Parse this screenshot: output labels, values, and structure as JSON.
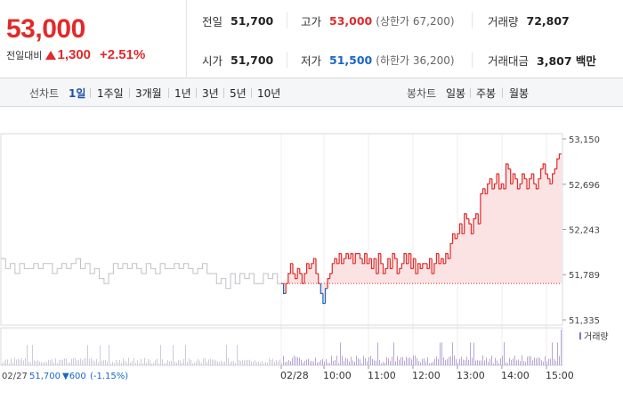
{
  "header": {
    "current_price": "53,000",
    "change_label": "전일대비",
    "change_value": "1,300",
    "change_rate": "+2.51%",
    "stats": {
      "prev_close": {
        "label": "전일",
        "value": "51,700"
      },
      "high": {
        "label": "고가",
        "value": "53,000",
        "sub": "(상한가 67,200)"
      },
      "volume": {
        "label": "거래량",
        "value": "72,807"
      },
      "open": {
        "label": "시가",
        "value": "51,700"
      },
      "low": {
        "label": "저가",
        "value": "51,500",
        "sub": "(하한가 36,200)"
      },
      "trade_value": {
        "label": "거래대금",
        "value": "3,807 백만"
      }
    },
    "colors": {
      "up": "#e22a2a",
      "down": "#1a66c8"
    }
  },
  "toolbar": {
    "line_chart_label": "선차트",
    "periods": [
      "1일",
      "1주일",
      "3개월",
      "1년",
      "3년",
      "5년",
      "10년"
    ],
    "active_period": "1일",
    "candle_chart_label": "봉차트",
    "candles": [
      "일봉",
      "주봉",
      "월봉"
    ]
  },
  "chart_data": {
    "type": "line",
    "y_ticks": [
      "53,150",
      "52,696",
      "52,243",
      "51,789",
      "51,335"
    ],
    "ylim": [
      51335,
      53150
    ],
    "reference_price": 51700,
    "time_labels": [
      "02/28",
      "10:00",
      "11:00",
      "12:00",
      "13:00",
      "14:00",
      "15:00"
    ],
    "volume_legend": "거래량",
    "prev_day_note": {
      "date": "02/27",
      "price": "51,700",
      "change": "▼600",
      "rate": "(-1.15%)"
    },
    "series": [
      {
        "day": "previous",
        "color": "#bfc1c5",
        "values": [
          51950,
          51850,
          51900,
          51800,
          51900,
          51850,
          51850,
          51900,
          51850,
          51900,
          51900,
          51800,
          51850,
          51900,
          51850,
          51900,
          51950,
          51850,
          51900,
          51800,
          51850,
          51750,
          51700,
          51800,
          51900,
          51850,
          51900,
          51850,
          51900,
          51850,
          51800,
          51900,
          51850,
          51800,
          51900,
          51850,
          51850,
          51900,
          51850,
          51900,
          51850,
          51800,
          51850,
          51900,
          51800,
          51800,
          51700,
          51750,
          51650,
          51800,
          51700,
          51800,
          51750,
          51800,
          51700,
          51700,
          51800,
          51750,
          51800,
          51700
        ]
      },
      {
        "day": "today",
        "color_up": "#e22a2a",
        "color_down": "#1a66c8",
        "values": [
          51700,
          51600,
          51700,
          51800,
          51900,
          51800,
          51750,
          51850,
          51800,
          51700,
          51800,
          51900,
          51850,
          51900,
          51950,
          51800,
          51700,
          51600,
          51500,
          51650,
          51750,
          51800,
          51900,
          51950,
          51900,
          52000,
          51900,
          51950,
          52000,
          51950,
          52000,
          51900,
          52000,
          52000,
          51950,
          51900,
          52000,
          51900,
          51950,
          51850,
          51950,
          51800,
          52000,
          51900,
          51800,
          51850,
          51950,
          51850,
          52000,
          51950,
          51800,
          51850,
          51900,
          52000,
          51900,
          52000,
          51850,
          51950,
          51800,
          51900,
          51850,
          51900,
          51900,
          51850,
          51950,
          51800,
          51900,
          52000,
          51900,
          51950,
          51900,
          52000,
          51950,
          52100,
          52200,
          52150,
          52200,
          52300,
          52200,
          52400,
          52350,
          52300,
          52200,
          52350,
          52400,
          52300,
          52600,
          52650,
          52600,
          52700,
          52750,
          52650,
          52700,
          52800,
          52650,
          52700,
          52650,
          52900,
          52850,
          52700,
          52800,
          52750,
          52650,
          52700,
          52800,
          52750,
          52650,
          52750,
          52800,
          52700,
          52650,
          52750,
          52850,
          52900,
          52800,
          52750,
          52700,
          52800,
          52850,
          52950,
          53000
        ]
      }
    ]
  }
}
